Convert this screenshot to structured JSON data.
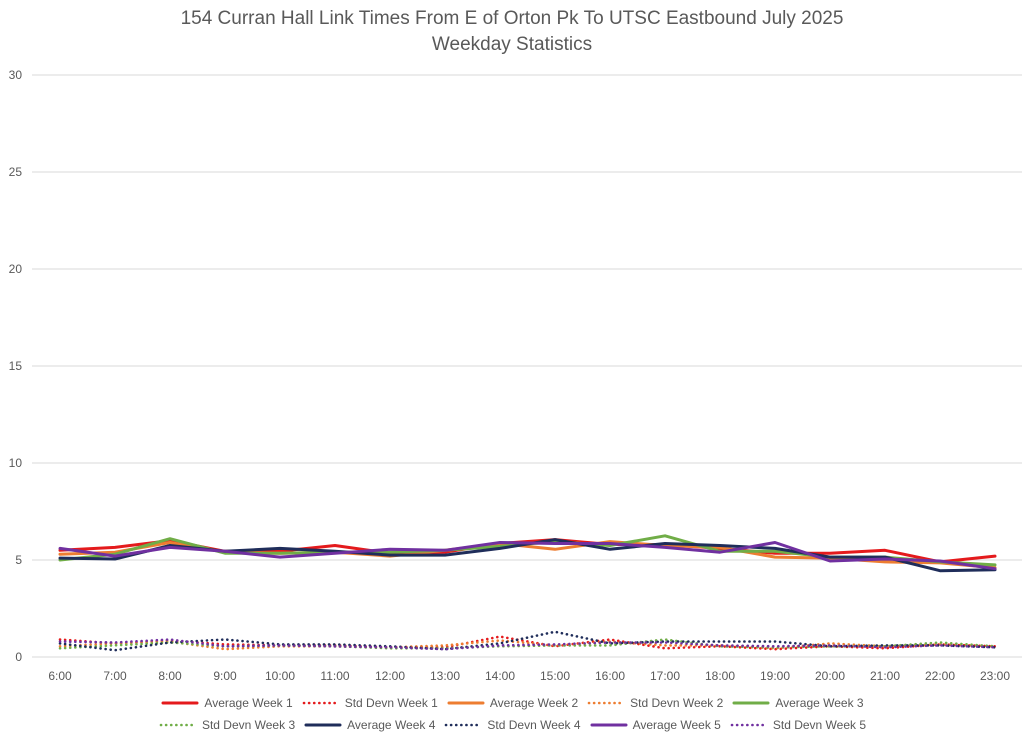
{
  "chart_data": {
    "type": "line",
    "title": "154 Curran Hall Link Times From E of Orton Pk To UTSC Eastbound July 2025",
    "subtitle": "Weekday Statistics",
    "xlabel": "",
    "ylabel": "",
    "ylim": [
      0,
      30
    ],
    "yticks": [
      0,
      5,
      10,
      15,
      20,
      25,
      30
    ],
    "grid": true,
    "legend_position": "bottom",
    "categories": [
      "6:00",
      "7:00",
      "8:00",
      "9:00",
      "10:00",
      "11:00",
      "12:00",
      "13:00",
      "14:00",
      "15:00",
      "16:00",
      "17:00",
      "18:00",
      "19:00",
      "20:00",
      "21:00",
      "22:00",
      "23:00"
    ],
    "series": [
      {
        "name": "Average Week 1",
        "style": "solid",
        "color": "#e41a1c",
        "values": [
          5.5,
          5.65,
          6.0,
          5.45,
          5.45,
          5.75,
          5.35,
          5.4,
          5.85,
          6.05,
          5.8,
          5.8,
          5.6,
          5.35,
          5.35,
          5.5,
          4.9,
          5.2
        ]
      },
      {
        "name": "Std Devn Week 1",
        "style": "dotted",
        "color": "#e41a1c",
        "values": [
          0.9,
          0.7,
          0.85,
          0.65,
          0.6,
          0.6,
          0.5,
          0.5,
          1.05,
          0.55,
          0.9,
          0.45,
          0.55,
          0.4,
          0.55,
          0.45,
          0.65,
          0.55
        ]
      },
      {
        "name": "Average Week 2",
        "style": "solid",
        "color": "#ed7d31",
        "values": [
          5.3,
          5.4,
          5.9,
          5.4,
          5.35,
          5.4,
          5.2,
          5.5,
          5.85,
          5.55,
          5.95,
          5.75,
          5.65,
          5.15,
          5.1,
          4.9,
          4.85,
          4.6
        ]
      },
      {
        "name": "Std Devn Week 2",
        "style": "dotted",
        "color": "#ed7d31",
        "values": [
          0.55,
          0.7,
          0.8,
          0.4,
          0.55,
          0.55,
          0.5,
          0.6,
          0.85,
          0.6,
          0.8,
          0.6,
          0.6,
          0.45,
          0.7,
          0.55,
          0.65,
          0.55
        ]
      },
      {
        "name": "Average Week 3",
        "style": "solid",
        "color": "#70ad47",
        "values": [
          5.0,
          5.3,
          6.1,
          5.35,
          5.35,
          5.4,
          5.4,
          5.5,
          5.7,
          5.95,
          5.75,
          6.25,
          5.45,
          5.45,
          5.15,
          5.15,
          4.9,
          4.75
        ]
      },
      {
        "name": "Std Devn Week 3",
        "style": "dotted",
        "color": "#70ad47",
        "values": [
          0.45,
          0.6,
          0.75,
          0.55,
          0.6,
          0.55,
          0.45,
          0.45,
          0.55,
          0.6,
          0.6,
          0.9,
          0.55,
          0.5,
          0.55,
          0.55,
          0.75,
          0.55
        ]
      },
      {
        "name": "Average Week 4",
        "style": "solid",
        "color": "#1f2d5a",
        "values": [
          5.1,
          5.05,
          5.75,
          5.45,
          5.6,
          5.45,
          5.25,
          5.25,
          5.6,
          6.05,
          5.55,
          5.85,
          5.75,
          5.6,
          5.15,
          5.15,
          4.45,
          4.5
        ]
      },
      {
        "name": "Std Devn Week 4",
        "style": "dotted",
        "color": "#1f2d5a",
        "values": [
          0.7,
          0.35,
          0.75,
          0.9,
          0.65,
          0.65,
          0.55,
          0.4,
          0.7,
          1.3,
          0.7,
          0.8,
          0.8,
          0.8,
          0.55,
          0.6,
          0.6,
          0.5
        ]
      },
      {
        "name": "Average Week 5",
        "style": "solid",
        "color": "#7030a0",
        "values": [
          5.6,
          5.2,
          5.65,
          5.45,
          5.15,
          5.35,
          5.55,
          5.5,
          5.9,
          5.85,
          5.85,
          5.65,
          5.4,
          5.9,
          4.95,
          5.05,
          4.95,
          4.55
        ]
      },
      {
        "name": "Std Devn Week 5",
        "style": "dotted",
        "color": "#7030a0",
        "values": [
          0.8,
          0.75,
          0.9,
          0.55,
          0.6,
          0.55,
          0.5,
          0.4,
          0.6,
          0.65,
          0.75,
          0.75,
          0.6,
          0.55,
          0.6,
          0.5,
          0.6,
          0.5
        ]
      }
    ]
  }
}
